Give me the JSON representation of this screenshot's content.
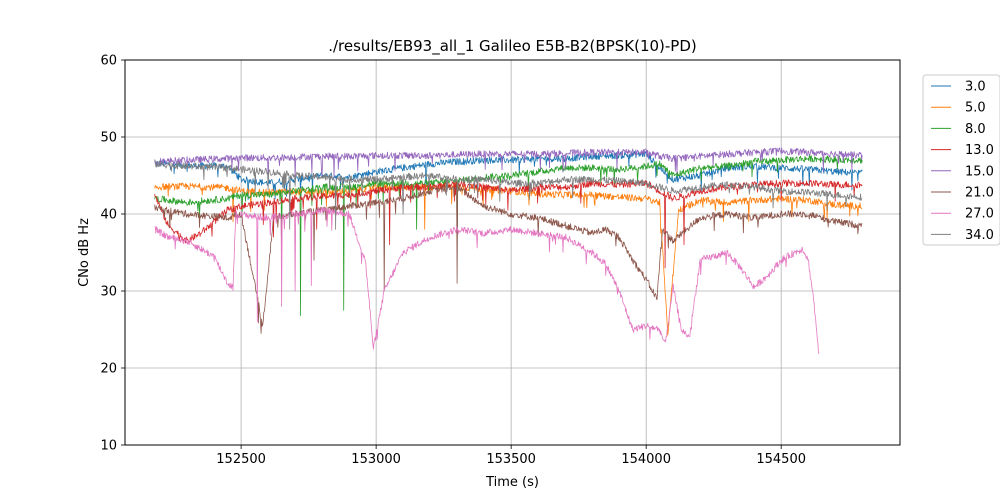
{
  "chart_data": {
    "type": "line",
    "title": "./results/EB93_all_1 Galileo E5B-B2(BPSK(10)-PD)",
    "xlabel": "Time (s)",
    "ylabel": "CNo dB Hz",
    "xlim": [
      152070,
      154940
    ],
    "ylim": [
      10,
      60
    ],
    "xticks": [
      152500,
      153000,
      153500,
      154000,
      154500
    ],
    "yticks": [
      10,
      20,
      30,
      40,
      50,
      60
    ],
    "grid": true,
    "legend_position": "right-outside-top",
    "series": [
      {
        "name": "3.0",
        "color": "#1f77b4",
        "points": [
          [
            152180,
            46.6
          ],
          [
            152300,
            46.3
          ],
          [
            152450,
            46.2
          ],
          [
            152500,
            44.5
          ],
          [
            152600,
            44.0
          ],
          [
            152700,
            44.5
          ],
          [
            152800,
            45.0
          ],
          [
            152900,
            44.8
          ],
          [
            153000,
            45.5
          ],
          [
            153100,
            46.0
          ],
          [
            153200,
            46.5
          ],
          [
            153300,
            46.8
          ],
          [
            153400,
            47.0
          ],
          [
            153500,
            47.0
          ],
          [
            153600,
            47.2
          ],
          [
            153700,
            47.2
          ],
          [
            153800,
            47.5
          ],
          [
            153900,
            47.6
          ],
          [
            154000,
            47.8
          ],
          [
            154050,
            46.0
          ],
          [
            154100,
            44.5
          ],
          [
            154200,
            45.0
          ],
          [
            154300,
            46.0
          ],
          [
            154400,
            46.2
          ],
          [
            154500,
            46.0
          ],
          [
            154600,
            45.8
          ],
          [
            154700,
            45.5
          ],
          [
            154800,
            45.3
          ]
        ],
        "dips": [
          [
            152620,
            43
          ],
          [
            152720,
            42
          ],
          [
            152880,
            44
          ]
        ]
      },
      {
        "name": "5.0",
        "color": "#ff7f0e",
        "points": [
          [
            152180,
            43.5
          ],
          [
            152300,
            43.6
          ],
          [
            152450,
            43.4
          ],
          [
            152500,
            43.0
          ],
          [
            152600,
            42.8
          ],
          [
            152700,
            42.9
          ],
          [
            152800,
            42.8
          ],
          [
            152900,
            43.0
          ],
          [
            153000,
            43.5
          ],
          [
            153100,
            43.5
          ],
          [
            153200,
            43.5
          ],
          [
            153300,
            43.6
          ],
          [
            153400,
            43.2
          ],
          [
            153500,
            43.0
          ],
          [
            153600,
            42.6
          ],
          [
            153700,
            42.5
          ],
          [
            153800,
            42.5
          ],
          [
            153900,
            42.2
          ],
          [
            154000,
            42.0
          ],
          [
            154050,
            41.5
          ],
          [
            154080,
            24.5
          ],
          [
            154120,
            40.5
          ],
          [
            154200,
            41.8
          ],
          [
            154300,
            41.5
          ],
          [
            154400,
            41.8
          ],
          [
            154500,
            42.0
          ],
          [
            154600,
            41.8
          ],
          [
            154700,
            41.2
          ],
          [
            154800,
            41.0
          ]
        ],
        "dips": [
          [
            152470,
            39
          ],
          [
            153180,
            38
          ],
          [
            154100,
            32
          ]
        ]
      },
      {
        "name": "8.0",
        "color": "#2ca02c",
        "points": [
          [
            152180,
            42.0
          ],
          [
            152300,
            41.5
          ],
          [
            152450,
            42.0
          ],
          [
            152500,
            42.5
          ],
          [
            152600,
            42.5
          ],
          [
            152700,
            43.0
          ],
          [
            152800,
            43.5
          ],
          [
            152900,
            43.5
          ],
          [
            153000,
            44.0
          ],
          [
            153100,
            44.0
          ],
          [
            153200,
            44.0
          ],
          [
            153300,
            44.3
          ],
          [
            153400,
            44.8
          ],
          [
            153500,
            45.0
          ],
          [
            153600,
            45.5
          ],
          [
            153700,
            46.0
          ],
          [
            153800,
            46.0
          ],
          [
            153900,
            45.8
          ],
          [
            154000,
            46.2
          ],
          [
            154050,
            46.5
          ],
          [
            154100,
            45.0
          ],
          [
            154200,
            46.0
          ],
          [
            154300,
            46.2
          ],
          [
            154400,
            46.8
          ],
          [
            154500,
            47.0
          ],
          [
            154600,
            47.2
          ],
          [
            154700,
            47.1
          ],
          [
            154800,
            47.0
          ]
        ],
        "dips": [
          [
            152720,
            26.8
          ],
          [
            152880,
            27.5
          ],
          [
            152650,
            36
          ],
          [
            153300,
            36
          ],
          [
            153150,
            38
          ]
        ]
      },
      {
        "name": "13.0",
        "color": "#d62728",
        "points": [
          [
            152180,
            42.5
          ],
          [
            152230,
            38.5
          ],
          [
            152300,
            36.5
          ],
          [
            152350,
            37.5
          ],
          [
            152400,
            39.0
          ],
          [
            152450,
            40.5
          ],
          [
            152500,
            41.0
          ],
          [
            152600,
            41.5
          ],
          [
            152700,
            42.0
          ],
          [
            152800,
            42.3
          ],
          [
            152900,
            42.5
          ],
          [
            153000,
            43.0
          ],
          [
            153100,
            43.5
          ],
          [
            153200,
            43.5
          ],
          [
            153300,
            44.0
          ],
          [
            153400,
            43.5
          ],
          [
            153500,
            43.0
          ],
          [
            153600,
            43.5
          ],
          [
            153700,
            43.5
          ],
          [
            153800,
            44.0
          ],
          [
            153900,
            43.8
          ],
          [
            154000,
            44.0
          ],
          [
            154050,
            43.0
          ],
          [
            154100,
            42.0
          ],
          [
            154200,
            43.0
          ],
          [
            154300,
            43.5
          ],
          [
            154400,
            43.8
          ],
          [
            154500,
            44.0
          ],
          [
            154600,
            44.0
          ],
          [
            154700,
            43.8
          ],
          [
            154800,
            43.8
          ]
        ],
        "dips": [
          [
            152620,
            37
          ],
          [
            152780,
            38
          ],
          [
            153050,
            36
          ],
          [
            154070,
            33
          ],
          [
            154140,
            36
          ]
        ]
      },
      {
        "name": "15.0",
        "color": "#9467bd",
        "points": [
          [
            152180,
            46.8
          ],
          [
            152300,
            47.0
          ],
          [
            152450,
            47.2
          ],
          [
            152500,
            47.3
          ],
          [
            152600,
            47.3
          ],
          [
            152700,
            47.4
          ],
          [
            152800,
            47.5
          ],
          [
            152900,
            47.5
          ],
          [
            153000,
            47.6
          ],
          [
            153100,
            47.6
          ],
          [
            153200,
            47.6
          ],
          [
            153300,
            47.7
          ],
          [
            153400,
            47.8
          ],
          [
            153500,
            47.8
          ],
          [
            153600,
            47.8
          ],
          [
            153700,
            47.9
          ],
          [
            153800,
            48.0
          ],
          [
            153900,
            48.0
          ],
          [
            154000,
            48.0
          ],
          [
            154050,
            47.5
          ],
          [
            154100,
            47.2
          ],
          [
            154200,
            47.5
          ],
          [
            154300,
            47.8
          ],
          [
            154400,
            48.0
          ],
          [
            154500,
            48.2
          ],
          [
            154600,
            48.0
          ],
          [
            154700,
            47.8
          ],
          [
            154800,
            47.6
          ]
        ],
        "dips": [
          [
            152600,
            44
          ],
          [
            152700,
            44.5
          ],
          [
            152800,
            45
          ]
        ]
      },
      {
        "name": "21.0",
        "color": "#8c564b",
        "points": [
          [
            152180,
            40.8
          ],
          [
            152300,
            40.0
          ],
          [
            152450,
            39.5
          ],
          [
            152500,
            40.0
          ],
          [
            152580,
            25.5
          ],
          [
            152620,
            39.5
          ],
          [
            152700,
            40.0
          ],
          [
            152800,
            40.5
          ],
          [
            152900,
            41.0
          ],
          [
            153000,
            41.5
          ],
          [
            153100,
            42.0
          ],
          [
            153200,
            43.0
          ],
          [
            153300,
            43.5
          ],
          [
            153400,
            41.0
          ],
          [
            153500,
            40.0
          ],
          [
            153600,
            39.5
          ],
          [
            153700,
            38.5
          ],
          [
            153800,
            37.5
          ],
          [
            153850,
            38.0
          ],
          [
            153900,
            37.0
          ],
          [
            153950,
            34.0
          ],
          [
            154000,
            31.5
          ],
          [
            154040,
            29.0
          ],
          [
            154060,
            38.0
          ],
          [
            154100,
            36.5
          ],
          [
            154200,
            39.5
          ],
          [
            154300,
            40.0
          ],
          [
            154400,
            39.5
          ],
          [
            154500,
            40.0
          ],
          [
            154600,
            40.0
          ],
          [
            154700,
            39.0
          ],
          [
            154800,
            38.5
          ]
        ],
        "dips": [
          [
            152650,
            35
          ],
          [
            152770,
            34
          ],
          [
            153030,
            30
          ],
          [
            153300,
            31
          ]
        ]
      },
      {
        "name": "27.0",
        "color": "#e377c2",
        "points": [
          [
            152180,
            38.0
          ],
          [
            152230,
            37.0
          ],
          [
            152300,
            36.5
          ],
          [
            152350,
            35.5
          ],
          [
            152400,
            34.5
          ],
          [
            152450,
            31.0
          ],
          [
            152470,
            30.5
          ],
          [
            152480,
            40.0
          ],
          [
            152600,
            39.5
          ],
          [
            152700,
            40.0
          ],
          [
            152800,
            40.5
          ],
          [
            152900,
            40.0
          ],
          [
            152960,
            34.0
          ],
          [
            152990,
            22.5
          ],
          [
            153030,
            30.0
          ],
          [
            153100,
            35.0
          ],
          [
            153200,
            37.0
          ],
          [
            153300,
            38.0
          ],
          [
            153400,
            37.5
          ],
          [
            153500,
            38.0
          ],
          [
            153600,
            37.5
          ],
          [
            153700,
            37.0
          ],
          [
            153800,
            35.0
          ],
          [
            153850,
            33.5
          ],
          [
            153900,
            30.0
          ],
          [
            153950,
            25.0
          ],
          [
            154000,
            25.5
          ],
          [
            154050,
            25.0
          ],
          [
            154070,
            23.0
          ],
          [
            154100,
            30.5
          ],
          [
            154130,
            25.0
          ],
          [
            154160,
            24.0
          ],
          [
            154200,
            34.0
          ],
          [
            154300,
            35.0
          ],
          [
            154350,
            33.0
          ],
          [
            154400,
            30.5
          ],
          [
            154450,
            32.0
          ],
          [
            154500,
            34.0
          ],
          [
            154550,
            35.0
          ],
          [
            154580,
            35.5
          ],
          [
            154600,
            34.0
          ],
          [
            154620,
            29.0
          ],
          [
            154640,
            21.5
          ]
        ],
        "dips": [
          [
            152560,
            26
          ],
          [
            152650,
            28
          ],
          [
            152700,
            30
          ],
          [
            152760,
            31
          ]
        ]
      },
      {
        "name": "34.0",
        "color": "#7f7f7f",
        "points": [
          [
            152180,
            46.5
          ],
          [
            152300,
            46.2
          ],
          [
            152450,
            46.0
          ],
          [
            152500,
            45.8
          ],
          [
            152600,
            45.5
          ],
          [
            152700,
            45.0
          ],
          [
            152800,
            44.8
          ],
          [
            152900,
            44.5
          ],
          [
            153000,
            44.5
          ],
          [
            153100,
            44.8
          ],
          [
            153200,
            45.0
          ],
          [
            153300,
            44.5
          ],
          [
            153400,
            44.5
          ],
          [
            153500,
            44.0
          ],
          [
            153600,
            44.0
          ],
          [
            153700,
            44.5
          ],
          [
            153800,
            44.5
          ],
          [
            153900,
            44.3
          ],
          [
            154000,
            44.0
          ],
          [
            154050,
            43.5
          ],
          [
            154100,
            43.0
          ],
          [
            154200,
            43.5
          ],
          [
            154300,
            43.8
          ],
          [
            154400,
            43.5
          ],
          [
            154500,
            43.0
          ],
          [
            154600,
            42.8
          ],
          [
            154700,
            42.5
          ],
          [
            154800,
            42.2
          ]
        ],
        "dips": [
          [
            152680,
            38
          ],
          [
            152850,
            38
          ],
          [
            153100,
            40
          ]
        ]
      }
    ]
  }
}
